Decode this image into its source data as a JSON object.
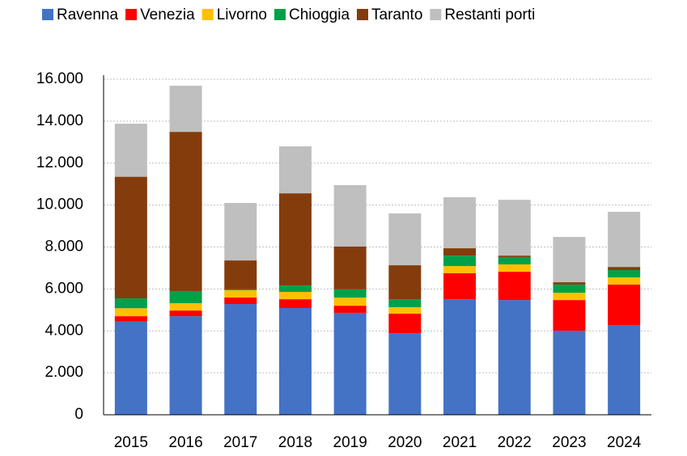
{
  "chart_data": {
    "type": "stacked_bar",
    "categories": [
      "2015",
      "2016",
      "2017",
      "2018",
      "2019",
      "2020",
      "2021",
      "2022",
      "2023",
      "2024"
    ],
    "series": [
      {
        "name": "Ravenna",
        "color": "#4472c4",
        "values": [
          4450,
          4700,
          5280,
          5090,
          4860,
          3890,
          5510,
          5470,
          4010,
          4280
        ]
      },
      {
        "name": "Venezia",
        "color": "#ff0000",
        "values": [
          250,
          270,
          310,
          420,
          340,
          930,
          1240,
          1350,
          1460,
          1930
        ]
      },
      {
        "name": "Livorno",
        "color": "#ffc000",
        "values": [
          380,
          350,
          350,
          350,
          390,
          310,
          340,
          350,
          350,
          340
        ]
      },
      {
        "name": "Chioggia",
        "color": "#00a04a",
        "values": [
          470,
          580,
          40,
          310,
          390,
          380,
          500,
          350,
          390,
          350
        ]
      },
      {
        "name": "Taranto",
        "color": "#843c0c",
        "values": [
          5800,
          7590,
          1380,
          4390,
          2040,
          1620,
          350,
          70,
          110,
          150
        ]
      },
      {
        "name": "Restanti porti",
        "color": "#bfbfbf",
        "values": [
          2530,
          2200,
          2740,
          2240,
          2930,
          2470,
          2430,
          2660,
          2160,
          2630
        ]
      }
    ],
    "ylim": [
      0,
      16000
    ],
    "yticks": [
      0,
      {
        "value": 2000,
        "label": "2.000"
      },
      {
        "value": 4000,
        "label": "4.000"
      },
      {
        "value": 6000,
        "label": "6.000"
      },
      {
        "value": 8000,
        "label": "8.000"
      },
      {
        "value": 10000,
        "label": "10.000"
      },
      {
        "value": 12000,
        "label": "12.000"
      },
      {
        "value": 14000,
        "label": "14.000"
      },
      {
        "value": 16000,
        "label": "16.000"
      }
    ],
    "grid": true,
    "legend": "top"
  }
}
